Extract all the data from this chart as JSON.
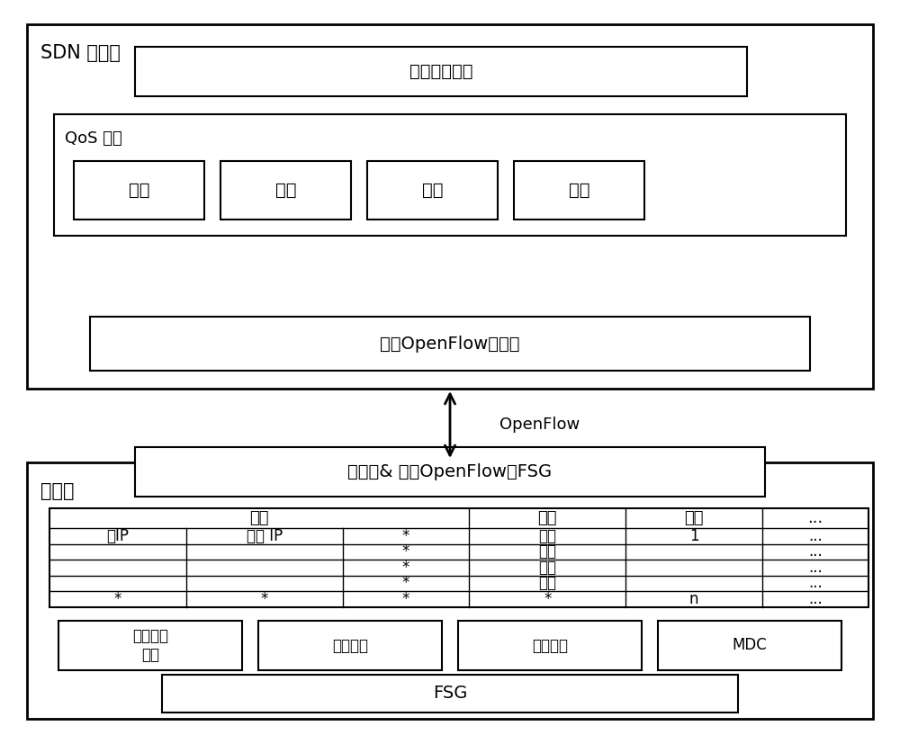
{
  "sdn_label": "SDN 控制器",
  "fog_label": "雾结点",
  "north_box": "北向接口驱动",
  "qos_label": "QoS 配置",
  "qos_items": [
    "增加",
    "删除",
    "查询",
    "修改"
  ],
  "openflow_driver": "基于OpenFlow的驱动",
  "openflow_label": "OpenFlow",
  "fog_service": "雾服务& 基于OpenFlow的FSG",
  "table_header_row1": [
    "匹配",
    "",
    "",
    "动作",
    "计数",
    "..."
  ],
  "table_header_row2": [
    "源IP",
    "目的 IP",
    "*",
    "转发",
    "1",
    "..."
  ],
  "table_data": [
    [
      "",
      "",
      "*",
      "丢包",
      "",
      "..."
    ],
    [
      "",
      "",
      "*",
      "入队",
      "",
      "..."
    ],
    [
      "",
      "",
      "*",
      "修改",
      "",
      "..."
    ],
    [
      "*",
      "*",
      "*",
      "*",
      "n",
      "..."
    ]
  ],
  "bottom_boxes": [
    "状态采集\n模块",
    "监控模块",
    "处理模块",
    "MDC"
  ],
  "fsg_box": "FSG",
  "bg_color": "#ffffff",
  "box_color": "#ffffff",
  "border_color": "#000000",
  "font_size": 14,
  "title_font_size": 15
}
